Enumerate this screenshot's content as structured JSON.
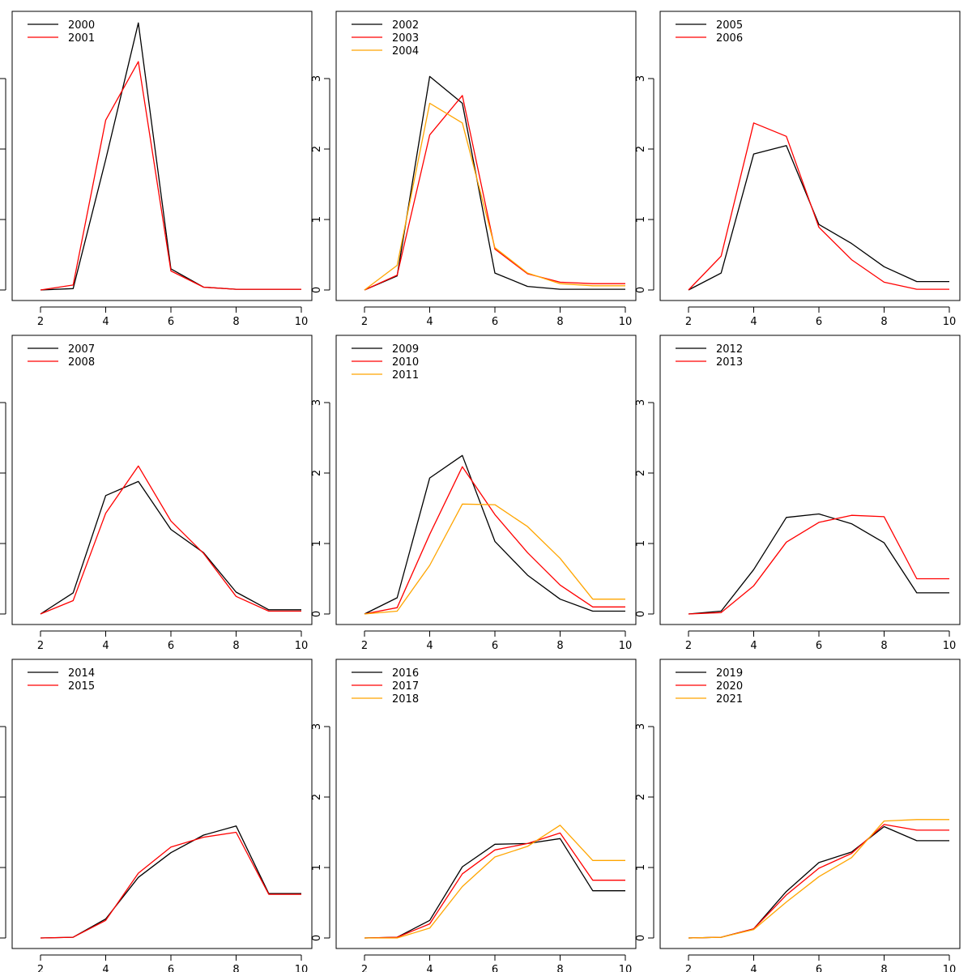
{
  "chart_data": [
    {
      "type": "line",
      "ylim": [
        0,
        3.8
      ],
      "xlim": [
        2,
        10
      ],
      "xticks": [
        "2",
        "4",
        "6",
        "8",
        "10"
      ],
      "yticks": [
        "0",
        "1",
        "2",
        "3"
      ],
      "legend_position": "top-left",
      "series": [
        {
          "name": "2000",
          "color": "#000000",
          "x": [
            2,
            3,
            4,
            5,
            6,
            7,
            8,
            9,
            10
          ],
          "y": [
            0.0,
            0.02,
            1.85,
            3.79,
            0.3,
            0.04,
            0.01,
            0.01,
            0.01
          ]
        },
        {
          "name": "2001",
          "color": "#ff0000",
          "x": [
            2,
            3,
            4,
            5,
            6,
            7,
            8,
            9,
            10
          ],
          "y": [
            0.0,
            0.07,
            2.41,
            3.24,
            0.27,
            0.04,
            0.01,
            0.01,
            0.01
          ]
        }
      ]
    },
    {
      "type": "line",
      "ylim": [
        0,
        3.8
      ],
      "xlim": [
        2,
        10
      ],
      "xticks": [
        "2",
        "4",
        "6",
        "8",
        "10"
      ],
      "yticks": [
        "0",
        "1",
        "2",
        "3"
      ],
      "legend_position": "top-left",
      "series": [
        {
          "name": "2002",
          "color": "#000000",
          "x": [
            2,
            3,
            4,
            5,
            6,
            7,
            8,
            9,
            10
          ],
          "y": [
            0.0,
            0.2,
            3.03,
            2.65,
            0.24,
            0.05,
            0.01,
            0.01,
            0.01
          ]
        },
        {
          "name": "2003",
          "color": "#ff0000",
          "x": [
            2,
            3,
            4,
            5,
            6,
            7,
            8,
            9,
            10
          ],
          "y": [
            0.0,
            0.21,
            2.2,
            2.76,
            0.58,
            0.23,
            0.11,
            0.09,
            0.09
          ]
        },
        {
          "name": "2004",
          "color": "#ffa500",
          "x": [
            2,
            3,
            4,
            5,
            6,
            7,
            8,
            9,
            10
          ],
          "y": [
            0.0,
            0.35,
            2.65,
            2.37,
            0.6,
            0.24,
            0.09,
            0.06,
            0.06
          ]
        }
      ]
    },
    {
      "type": "line",
      "ylim": [
        0,
        3.8
      ],
      "xlim": [
        2,
        10
      ],
      "xticks": [
        "2",
        "4",
        "6",
        "8",
        "10"
      ],
      "yticks": [
        "0",
        "1",
        "2",
        "3"
      ],
      "legend_position": "top-left",
      "series": [
        {
          "name": "2005",
          "color": "#000000",
          "x": [
            2,
            3,
            4,
            5,
            6,
            7,
            8,
            9,
            10
          ],
          "y": [
            0.0,
            0.24,
            1.93,
            2.05,
            0.93,
            0.66,
            0.33,
            0.12,
            0.12
          ]
        },
        {
          "name": "2006",
          "color": "#ff0000",
          "x": [
            2,
            3,
            4,
            5,
            6,
            7,
            8,
            9,
            10
          ],
          "y": [
            0.0,
            0.48,
            2.37,
            2.18,
            0.89,
            0.43,
            0.11,
            0.01,
            0.01
          ]
        }
      ]
    },
    {
      "type": "line",
      "ylim": [
        0,
        3.8
      ],
      "xlim": [
        2,
        10
      ],
      "xticks": [
        "2",
        "4",
        "6",
        "8",
        "10"
      ],
      "yticks": [
        "0",
        "1",
        "2",
        "3"
      ],
      "legend_position": "top-left",
      "series": [
        {
          "name": "2007",
          "color": "#000000",
          "x": [
            2,
            3,
            4,
            5,
            6,
            7,
            8,
            9,
            10
          ],
          "y": [
            0.0,
            0.3,
            1.68,
            1.88,
            1.2,
            0.87,
            0.31,
            0.06,
            0.06
          ]
        },
        {
          "name": "2008",
          "color": "#ff0000",
          "x": [
            2,
            3,
            4,
            5,
            6,
            7,
            8,
            9,
            10
          ],
          "y": [
            0.0,
            0.19,
            1.43,
            2.1,
            1.32,
            0.86,
            0.25,
            0.04,
            0.04
          ]
        }
      ]
    },
    {
      "type": "line",
      "ylim": [
        0,
        3.8
      ],
      "xlim": [
        2,
        10
      ],
      "xticks": [
        "2",
        "4",
        "6",
        "8",
        "10"
      ],
      "yticks": [
        "0",
        "1",
        "2",
        "3"
      ],
      "legend_position": "top-left",
      "series": [
        {
          "name": "2009",
          "color": "#000000",
          "x": [
            2,
            3,
            4,
            5,
            6,
            7,
            8,
            9,
            10
          ],
          "y": [
            0.0,
            0.23,
            1.93,
            2.25,
            1.03,
            0.55,
            0.21,
            0.04,
            0.04
          ]
        },
        {
          "name": "2010",
          "color": "#ff0000",
          "x": [
            2,
            3,
            4,
            5,
            6,
            7,
            8,
            9,
            10
          ],
          "y": [
            0.0,
            0.09,
            1.13,
            2.09,
            1.41,
            0.87,
            0.41,
            0.1,
            0.1
          ]
        },
        {
          "name": "2011",
          "color": "#ffa500",
          "x": [
            2,
            3,
            4,
            5,
            6,
            7,
            8,
            9,
            10
          ],
          "y": [
            0.0,
            0.04,
            0.69,
            1.56,
            1.55,
            1.24,
            0.79,
            0.21,
            0.21
          ]
        }
      ]
    },
    {
      "type": "line",
      "ylim": [
        0,
        3.8
      ],
      "xlim": [
        2,
        10
      ],
      "xticks": [
        "2",
        "4",
        "6",
        "8",
        "10"
      ],
      "yticks": [
        "0",
        "1",
        "2",
        "3"
      ],
      "legend_position": "top-left",
      "series": [
        {
          "name": "2012",
          "color": "#000000",
          "x": [
            2,
            3,
            4,
            5,
            6,
            7,
            8,
            9,
            10
          ],
          "y": [
            0.0,
            0.04,
            0.63,
            1.37,
            1.42,
            1.28,
            1.01,
            0.3,
            0.3
          ]
        },
        {
          "name": "2013",
          "color": "#ff0000",
          "x": [
            2,
            3,
            4,
            5,
            6,
            7,
            8,
            9,
            10
          ],
          "y": [
            0.0,
            0.02,
            0.4,
            1.02,
            1.3,
            1.4,
            1.38,
            0.5,
            0.5
          ]
        }
      ]
    },
    {
      "type": "line",
      "ylim": [
        0,
        3.8
      ],
      "xlim": [
        2,
        10
      ],
      "xticks": [
        "2",
        "4",
        "6",
        "8",
        "10"
      ],
      "yticks": [
        "0",
        "1",
        "2",
        "3"
      ],
      "legend_position": "top-left",
      "series": [
        {
          "name": "2014",
          "color": "#000000",
          "x": [
            2,
            3,
            4,
            5,
            6,
            7,
            8,
            9,
            10
          ],
          "y": [
            0.0,
            0.01,
            0.27,
            0.86,
            1.21,
            1.46,
            1.59,
            0.63,
            0.63
          ]
        },
        {
          "name": "2015",
          "color": "#ff0000",
          "x": [
            2,
            3,
            4,
            5,
            6,
            7,
            8,
            9,
            10
          ],
          "y": [
            0.0,
            0.01,
            0.25,
            0.92,
            1.29,
            1.43,
            1.5,
            0.62,
            0.62
          ]
        }
      ]
    },
    {
      "type": "line",
      "ylim": [
        0,
        3.8
      ],
      "xlim": [
        2,
        10
      ],
      "xticks": [
        "2",
        "4",
        "6",
        "8",
        "10"
      ],
      "yticks": [
        "0",
        "1",
        "2",
        "3"
      ],
      "legend_position": "top-left",
      "series": [
        {
          "name": "2016",
          "color": "#000000",
          "x": [
            2,
            3,
            4,
            5,
            6,
            7,
            8,
            9,
            10
          ],
          "y": [
            0.0,
            0.01,
            0.25,
            1.01,
            1.33,
            1.34,
            1.41,
            0.67,
            0.67
          ]
        },
        {
          "name": "2017",
          "color": "#ff0000",
          "x": [
            2,
            3,
            4,
            5,
            6,
            7,
            8,
            9,
            10
          ],
          "y": [
            0.0,
            0.01,
            0.2,
            0.91,
            1.25,
            1.34,
            1.49,
            0.82,
            0.82
          ]
        },
        {
          "name": "2018",
          "color": "#ffa500",
          "x": [
            2,
            3,
            4,
            5,
            6,
            7,
            8,
            9,
            10
          ],
          "y": [
            0.0,
            0.0,
            0.14,
            0.73,
            1.15,
            1.3,
            1.6,
            1.1,
            1.1
          ]
        }
      ]
    },
    {
      "type": "line",
      "ylim": [
        0,
        3.8
      ],
      "xlim": [
        2,
        10
      ],
      "xticks": [
        "2",
        "4",
        "6",
        "8",
        "10"
      ],
      "yticks": [
        "0",
        "1",
        "2",
        "3"
      ],
      "legend_position": "top-left",
      "series": [
        {
          "name": "2019",
          "color": "#000000",
          "x": [
            2,
            3,
            4,
            5,
            6,
            7,
            8,
            9,
            10
          ],
          "y": [
            0.0,
            0.01,
            0.13,
            0.66,
            1.07,
            1.22,
            1.58,
            1.38,
            1.38
          ]
        },
        {
          "name": "2020",
          "color": "#ff0000",
          "x": [
            2,
            3,
            4,
            5,
            6,
            7,
            8,
            9,
            10
          ],
          "y": [
            0.0,
            0.01,
            0.13,
            0.61,
            0.99,
            1.2,
            1.61,
            1.53,
            1.53
          ]
        },
        {
          "name": "2021",
          "color": "#ffa500",
          "x": [
            2,
            3,
            4,
            5,
            6,
            7,
            8,
            9,
            10
          ],
          "y": [
            0.0,
            0.01,
            0.12,
            0.51,
            0.87,
            1.14,
            1.66,
            1.68,
            1.68
          ]
        }
      ]
    }
  ]
}
